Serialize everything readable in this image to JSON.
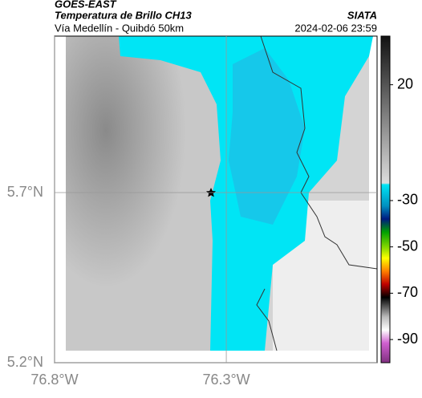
{
  "header": {
    "satellite": "GOES-EAST",
    "product": "Temperatura de Brillo CH13",
    "route": "Vía Medellín - Quibdó 50km",
    "source": "SIATA",
    "timestamp": "2024-02-06 23:59"
  },
  "map": {
    "xlim": [
      -76.8,
      -75.861
    ],
    "ylim": [
      5.2,
      6.16
    ],
    "xticks": [
      {
        "value": -76.8,
        "label": "76.8°W"
      },
      {
        "value": -76.3,
        "label": "76.3°W"
      }
    ],
    "yticks": [
      {
        "value": 5.2,
        "label": "5.2°N"
      },
      {
        "value": 5.7,
        "label": "5.7°N"
      }
    ],
    "grid": true
  },
  "colorbar": {
    "lim": [
      -100,
      41
    ],
    "ticks": [
      20,
      -30,
      -50,
      -70,
      -90
    ]
  }
}
